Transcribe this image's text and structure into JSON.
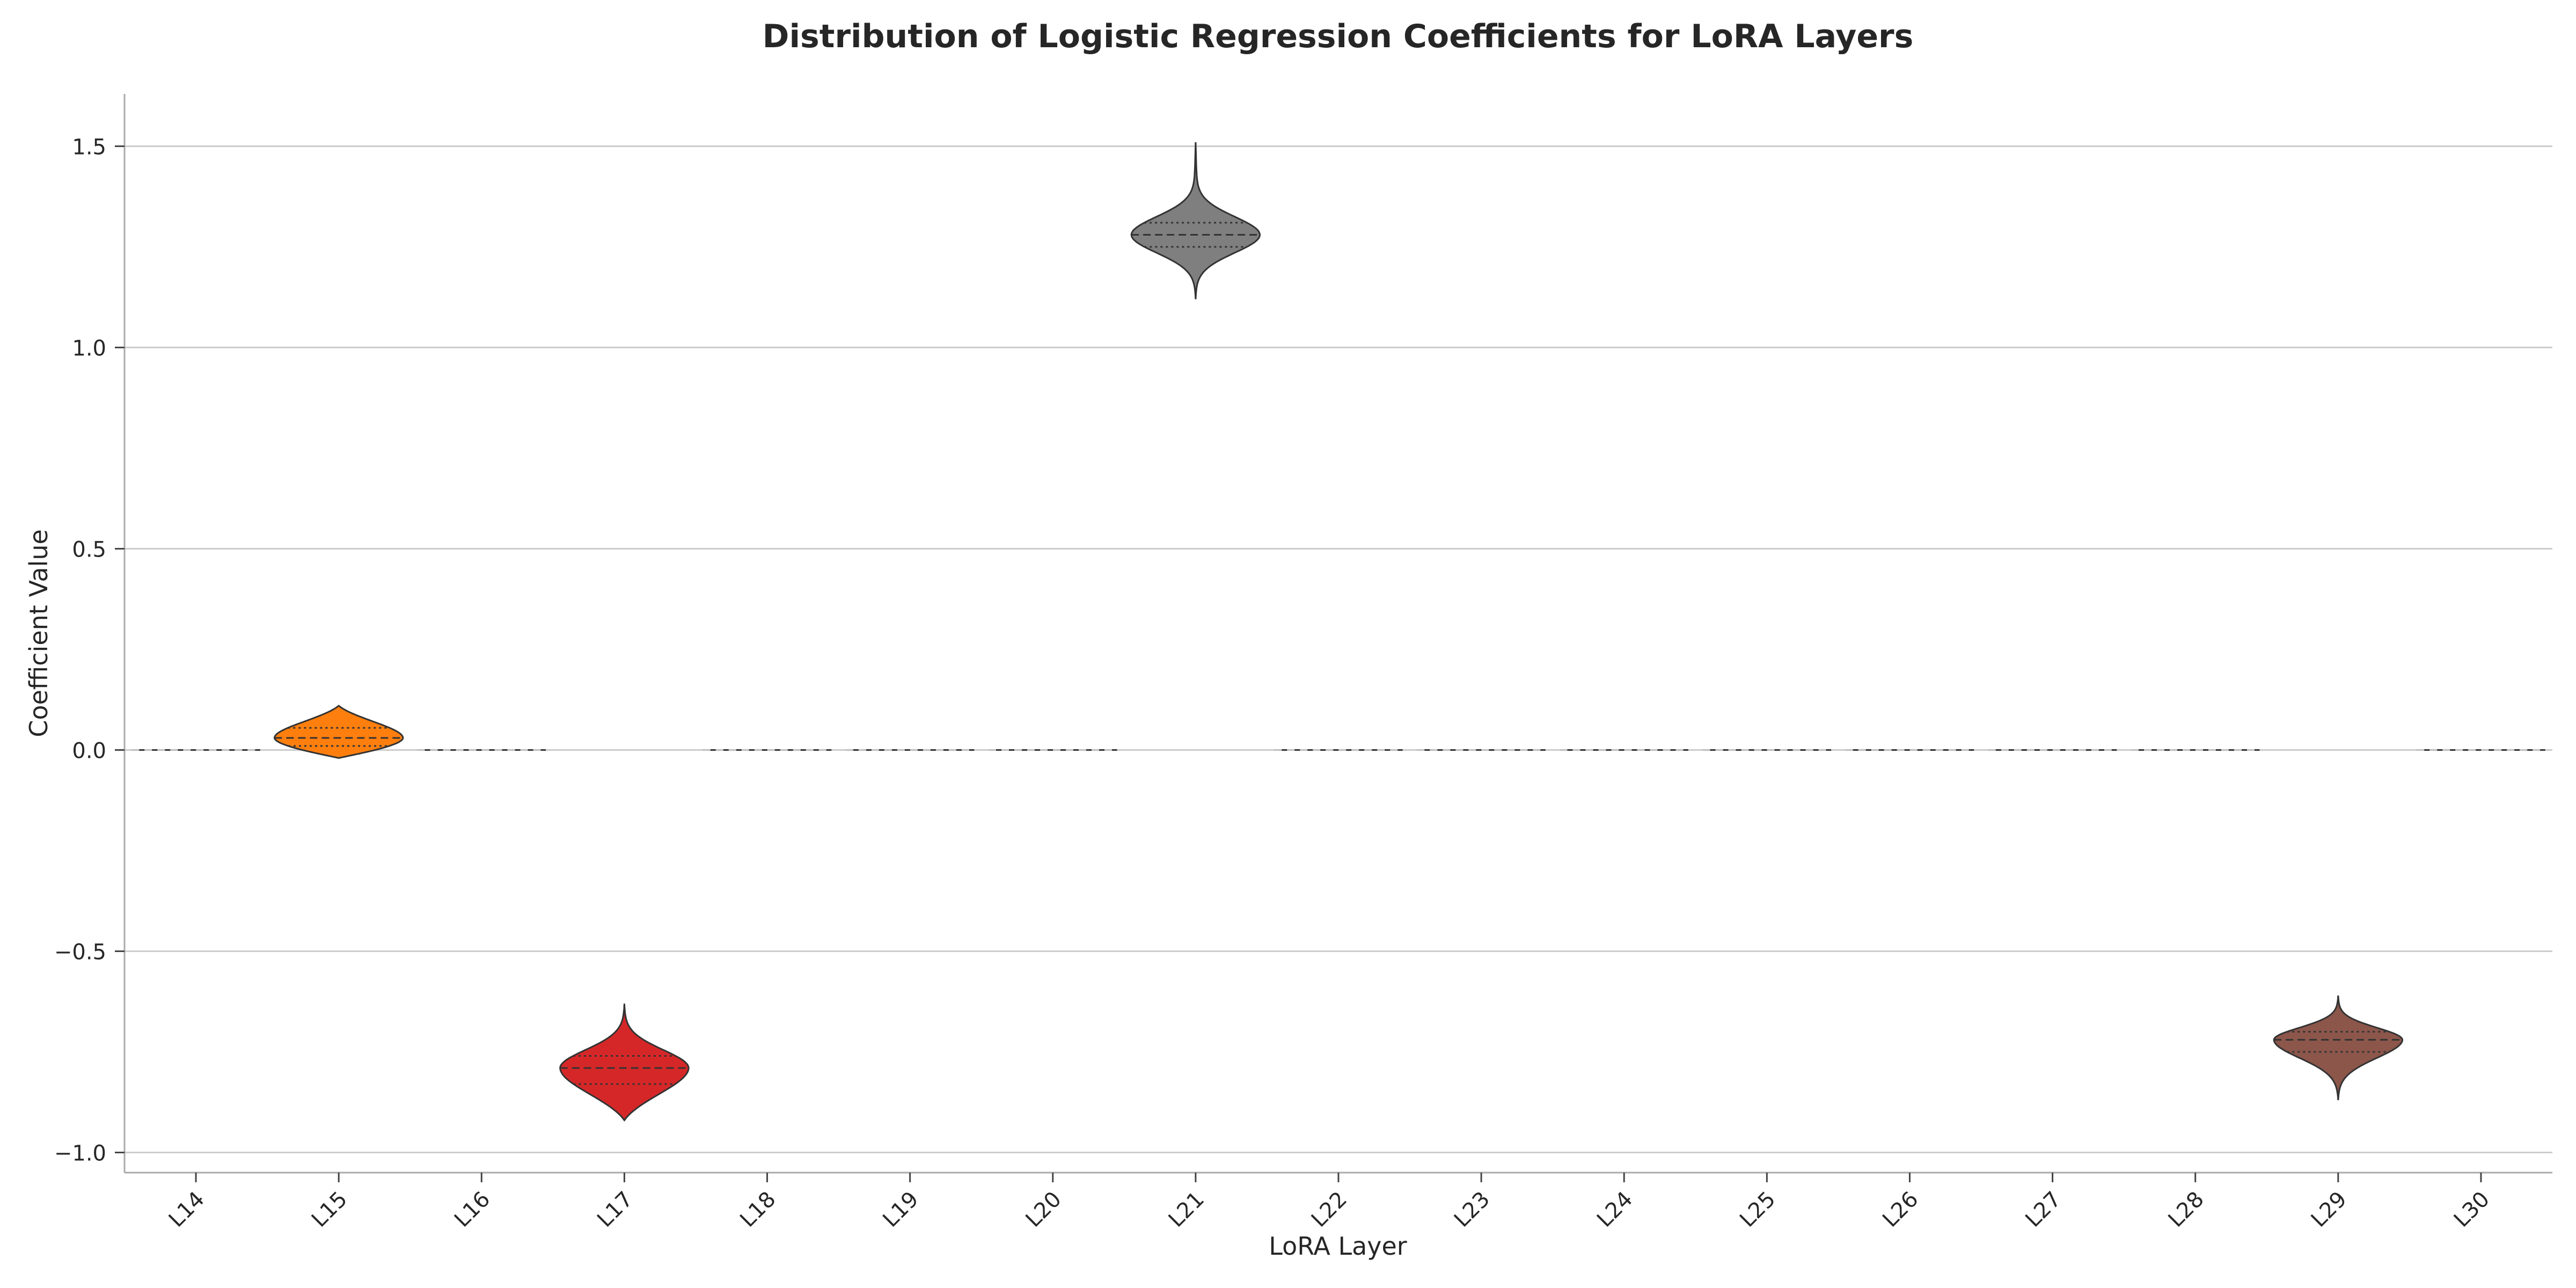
{
  "chart_data": {
    "type": "violin",
    "title": "Distribution of Logistic Regression Coefficients for LoRA Layers",
    "xlabel": "LoRA Layer",
    "ylabel": "Coefficient Value",
    "categories": [
      "L14",
      "L15",
      "L16",
      "L17",
      "L18",
      "L19",
      "L20",
      "L21",
      "L22",
      "L23",
      "L24",
      "L25",
      "L26",
      "L27",
      "L28",
      "L29",
      "L30"
    ],
    "ylim": [
      -1.05,
      1.63
    ],
    "yticks": [
      -1.0,
      -0.5,
      0.0,
      0.5,
      1.0,
      1.5
    ],
    "ytick_labels": [
      "−1.0",
      "−0.5",
      "0.0",
      "0.5",
      "1.0",
      "1.5"
    ],
    "grid": "horizontal",
    "inner": "quartile",
    "series": [
      {
        "category": "L14",
        "color": "#1f77b4",
        "median": 0.0,
        "q1": 0.0,
        "q3": 0.0,
        "min": 0.0,
        "max": 0.0
      },
      {
        "category": "L15",
        "color": "#ff7f0e",
        "median": 0.03,
        "q1": 0.01,
        "q3": 0.055,
        "min": -0.02,
        "max": 0.11
      },
      {
        "category": "L16",
        "color": "#2ca02c",
        "median": 0.0,
        "q1": 0.0,
        "q3": 0.0,
        "min": 0.0,
        "max": 0.0
      },
      {
        "category": "L17",
        "color": "#d62728",
        "median": -0.79,
        "q1": -0.83,
        "q3": -0.76,
        "min": -0.92,
        "max": -0.63
      },
      {
        "category": "L18",
        "color": "#9467bd",
        "median": 0.0,
        "q1": 0.0,
        "q3": 0.0,
        "min": 0.0,
        "max": 0.0
      },
      {
        "category": "L19",
        "color": "#8c564b",
        "median": 0.0,
        "q1": 0.0,
        "q3": 0.0,
        "min": 0.0,
        "max": 0.0
      },
      {
        "category": "L20",
        "color": "#e377c2",
        "median": 0.0,
        "q1": 0.0,
        "q3": 0.0,
        "min": 0.0,
        "max": 0.0
      },
      {
        "category": "L21",
        "color": "#7f7f7f",
        "median": 1.28,
        "q1": 1.25,
        "q3": 1.31,
        "min": 1.12,
        "max": 1.51
      },
      {
        "category": "L22",
        "color": "#bcbd22",
        "median": 0.0,
        "q1": 0.0,
        "q3": 0.0,
        "min": 0.0,
        "max": 0.0
      },
      {
        "category": "L23",
        "color": "#17becf",
        "median": 0.0,
        "q1": 0.0,
        "q3": 0.0,
        "min": 0.0,
        "max": 0.0
      },
      {
        "category": "L24",
        "color": "#1f77b4",
        "median": 0.0,
        "q1": 0.0,
        "q3": 0.0,
        "min": 0.0,
        "max": 0.0
      },
      {
        "category": "L25",
        "color": "#ff7f0e",
        "median": 0.0,
        "q1": 0.0,
        "q3": 0.0,
        "min": 0.0,
        "max": 0.0
      },
      {
        "category": "L26",
        "color": "#2ca02c",
        "median": 0.0,
        "q1": 0.0,
        "q3": 0.0,
        "min": 0.0,
        "max": 0.0
      },
      {
        "category": "L27",
        "color": "#d62728",
        "median": 0.0,
        "q1": 0.0,
        "q3": 0.0,
        "min": 0.0,
        "max": 0.0
      },
      {
        "category": "L28",
        "color": "#9467bd",
        "median": 0.0,
        "q1": 0.0,
        "q3": 0.0,
        "min": 0.0,
        "max": 0.0
      },
      {
        "category": "L29",
        "color": "#8c564b",
        "median": -0.72,
        "q1": -0.75,
        "q3": -0.7,
        "min": -0.87,
        "max": -0.61
      },
      {
        "category": "L30",
        "color": "#e377c2",
        "median": 0.0,
        "q1": 0.0,
        "q3": 0.0,
        "min": 0.0,
        "max": 0.0
      }
    ]
  }
}
